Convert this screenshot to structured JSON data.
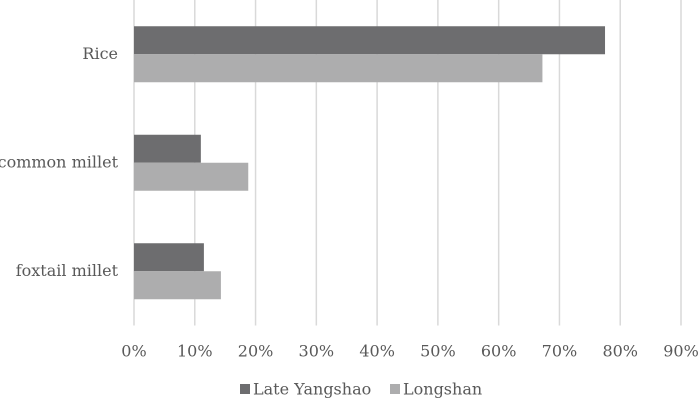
{
  "chart_data": {
    "type": "bar",
    "orientation": "horizontal",
    "categories": [
      "Rice",
      "common millet",
      "foxtail millet"
    ],
    "series": [
      {
        "name": "Late Yangshao",
        "color": "#6d6d6f",
        "values": [
          77.5,
          11.0,
          11.5
        ]
      },
      {
        "name": "Longshan",
        "color": "#adadae",
        "values": [
          67.2,
          18.8,
          14.3
        ]
      }
    ],
    "xlim": [
      0,
      90
    ],
    "xticks": [
      {
        "value": 0,
        "label": "0%"
      },
      {
        "value": 10,
        "label": "10%"
      },
      {
        "value": 20,
        "label": "20%"
      },
      {
        "value": 30,
        "label": "30%"
      },
      {
        "value": 40,
        "label": "40%"
      },
      {
        "value": 50,
        "label": "50%"
      },
      {
        "value": 60,
        "label": "60%"
      },
      {
        "value": 70,
        "label": "70%"
      },
      {
        "value": 80,
        "label": "80%"
      },
      {
        "value": 90,
        "label": "90%"
      }
    ],
    "grid": true,
    "legend": "bottom"
  }
}
